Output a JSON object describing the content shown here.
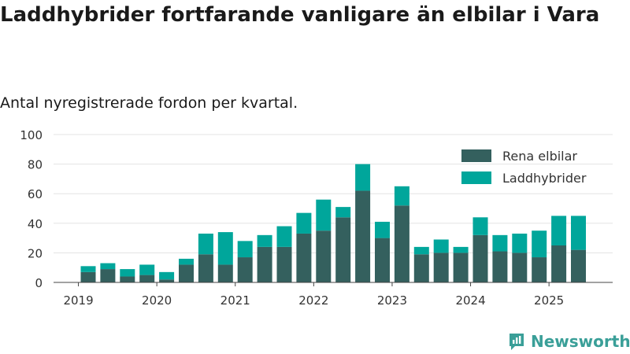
{
  "title": "Laddhybrider fortfarande vanligare än elbilar i Vara",
  "subtitle": "Antal nyregistrerade fordon per kvartal.",
  "brand": {
    "name": "Newsworthy",
    "icon": "newsworthy-logo-icon",
    "color": "#3a9f98"
  },
  "colors": {
    "bev": "#34605e",
    "phev": "#00a69b",
    "grid": "#e3e3e3",
    "axis": "#444444"
  },
  "chart_data": {
    "type": "bar",
    "stacked": true,
    "title": "Laddhybrider fortfarande vanligare än elbilar i Vara",
    "subtitle": "Antal nyregistrerade fordon per kvartal.",
    "xlabel": "",
    "ylabel": "",
    "ylim": [
      0,
      100
    ],
    "yticks": [
      0,
      20,
      40,
      60,
      80,
      100
    ],
    "grid": true,
    "legend_position": "top-right",
    "x_ticks": [
      {
        "label": "2019",
        "index": -0.5
      },
      {
        "label": "2020",
        "index": 3.5
      },
      {
        "label": "2021",
        "index": 7.5
      },
      {
        "label": "2022",
        "index": 11.5
      },
      {
        "label": "2023",
        "index": 15.5
      },
      {
        "label": "2024",
        "index": 19.5
      },
      {
        "label": "2025",
        "index": 23.5
      }
    ],
    "categories": [
      "2019 Q2",
      "2019 Q3",
      "2019 Q4",
      "2020 Q1",
      "2020 Q2",
      "2020 Q3",
      "2020 Q4",
      "2021 Q1",
      "2021 Q2",
      "2021 Q3",
      "2021 Q4",
      "2022 Q1",
      "2022 Q2",
      "2022 Q3",
      "2022 Q4",
      "2023 Q1",
      "2023 Q2",
      "2023 Q3",
      "2023 Q4",
      "2024 Q1",
      "2024 Q2",
      "2024 Q3",
      "2024 Q4",
      "2025 Q1",
      "2025 Q2",
      "2025 Q3"
    ],
    "series": [
      {
        "name": "Rena elbilar",
        "color": "#34605e",
        "values": [
          7,
          9,
          4,
          5,
          2,
          12,
          19,
          12,
          17,
          24,
          24,
          33,
          35,
          44,
          62,
          30,
          52,
          19,
          20,
          20,
          32,
          21,
          20,
          17,
          25,
          22
        ]
      },
      {
        "name": "Laddhybrider",
        "color": "#00a69b",
        "values": [
          4,
          4,
          5,
          7,
          5,
          4,
          14,
          22,
          11,
          8,
          14,
          14,
          21,
          7,
          18,
          11,
          13,
          5,
          9,
          4,
          12,
          11,
          13,
          18,
          20,
          23
        ]
      }
    ]
  }
}
